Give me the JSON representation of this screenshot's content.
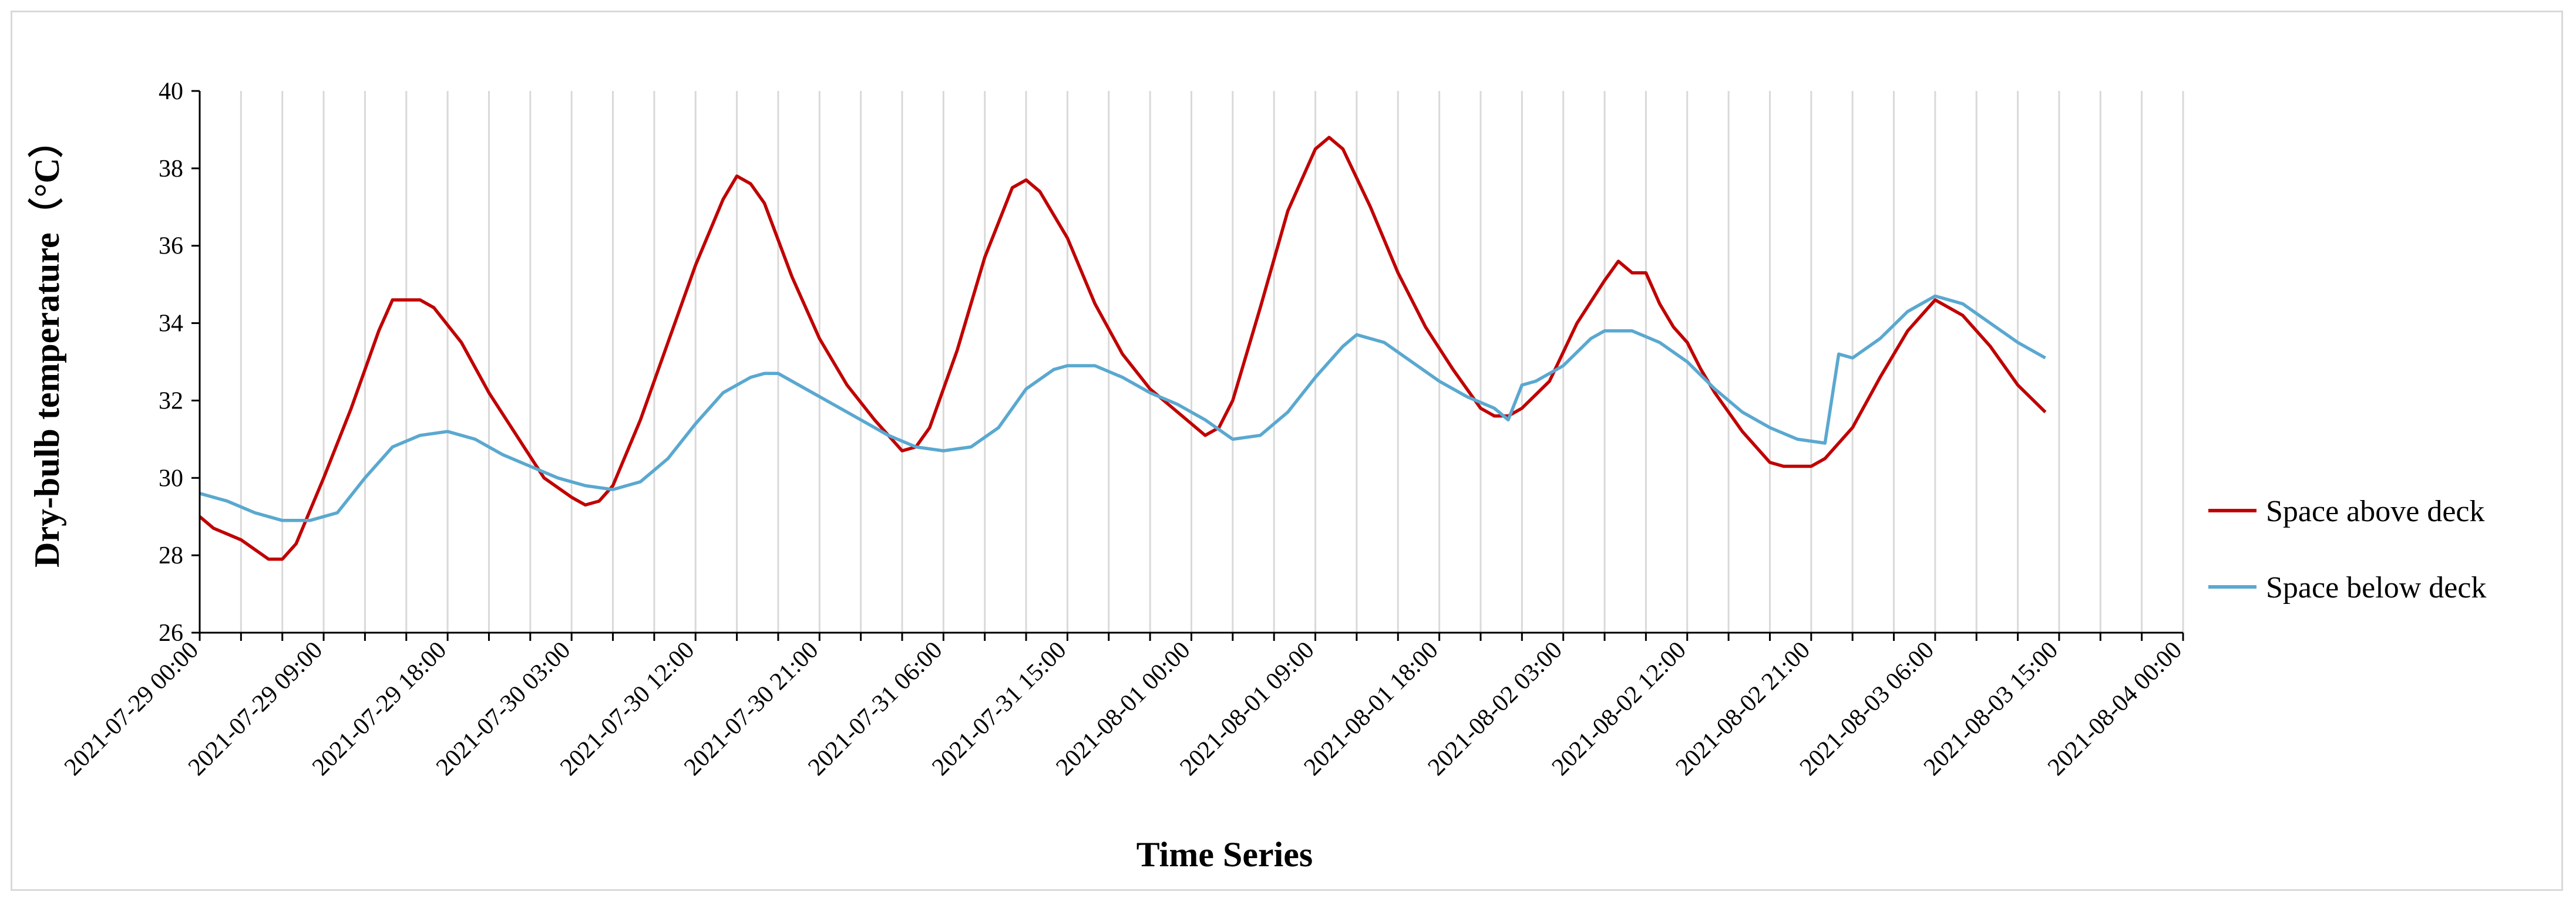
{
  "chart_data": {
    "type": "line",
    "title": "",
    "xlabel": "Time Series",
    "ylabel": "Dry-bulb temperature（°C）",
    "ylim": [
      26,
      40
    ],
    "yticks": [
      26,
      28,
      30,
      32,
      34,
      36,
      38,
      40
    ],
    "x_range_hours": [
      0,
      144
    ],
    "x_tick_interval_hours": 9,
    "x_start_label": "2021-07-29 00:00",
    "x_tick_labels": [
      "2021-07-29 00:00",
      "2021-07-29 09:00",
      "2021-07-29 18:00",
      "2021-07-30 03:00",
      "2021-07-30 12:00",
      "2021-07-30 21:00",
      "2021-07-31 06:00",
      "2021-07-31 15:00",
      "2021-08-01 00:00",
      "2021-08-01 09:00",
      "2021-08-01 18:00",
      "2021-08-02 03:00",
      "2021-08-02 12:00",
      "2021-08-02 21:00",
      "2021-08-03 06:00",
      "2021-08-03 15:00",
      "2021-08-04 00:00"
    ],
    "grid": "vertical",
    "legend_position": "right",
    "series": [
      {
        "name": "Space above deck",
        "color": "#c00000",
        "points": [
          [
            "2021-07-29 00:00",
            29.0
          ],
          [
            "2021-07-29 01:00",
            28.7
          ],
          [
            "2021-07-29 03:00",
            28.4
          ],
          [
            "2021-07-29 05:00",
            27.9
          ],
          [
            "2021-07-29 06:00",
            27.9
          ],
          [
            "2021-07-29 07:00",
            28.3
          ],
          [
            "2021-07-29 09:00",
            30.0
          ],
          [
            "2021-07-29 11:00",
            31.8
          ],
          [
            "2021-07-29 13:00",
            33.8
          ],
          [
            "2021-07-29 14:00",
            34.6
          ],
          [
            "2021-07-29 16:00",
            34.6
          ],
          [
            "2021-07-29 17:00",
            34.4
          ],
          [
            "2021-07-29 19:00",
            33.5
          ],
          [
            "2021-07-29 21:00",
            32.2
          ],
          [
            "2021-07-29 23:00",
            31.1
          ],
          [
            "2021-07-30 01:00",
            30.0
          ],
          [
            "2021-07-30 03:00",
            29.5
          ],
          [
            "2021-07-30 04:00",
            29.3
          ],
          [
            "2021-07-30 05:00",
            29.4
          ],
          [
            "2021-07-30 06:00",
            29.8
          ],
          [
            "2021-07-30 08:00",
            31.5
          ],
          [
            "2021-07-30 10:00",
            33.5
          ],
          [
            "2021-07-30 12:00",
            35.5
          ],
          [
            "2021-07-30 14:00",
            37.2
          ],
          [
            "2021-07-30 15:00",
            37.8
          ],
          [
            "2021-07-30 16:00",
            37.6
          ],
          [
            "2021-07-30 17:00",
            37.1
          ],
          [
            "2021-07-30 19:00",
            35.2
          ],
          [
            "2021-07-30 21:00",
            33.6
          ],
          [
            "2021-07-30 23:00",
            32.4
          ],
          [
            "2021-07-31 01:00",
            31.5
          ],
          [
            "2021-07-31 03:00",
            30.7
          ],
          [
            "2021-07-31 04:00",
            30.8
          ],
          [
            "2021-07-31 05:00",
            31.3
          ],
          [
            "2021-07-31 07:00",
            33.3
          ],
          [
            "2021-07-31 09:00",
            35.7
          ],
          [
            "2021-07-31 11:00",
            37.5
          ],
          [
            "2021-07-31 12:00",
            37.7
          ],
          [
            "2021-07-31 13:00",
            37.4
          ],
          [
            "2021-07-31 15:00",
            36.2
          ],
          [
            "2021-07-31 17:00",
            34.5
          ],
          [
            "2021-07-31 19:00",
            33.2
          ],
          [
            "2021-07-31 21:00",
            32.3
          ],
          [
            "2021-07-31 23:00",
            31.7
          ],
          [
            "2021-08-01 01:00",
            31.1
          ],
          [
            "2021-08-01 02:00",
            31.3
          ],
          [
            "2021-08-01 03:00",
            32.0
          ],
          [
            "2021-08-01 05:00",
            34.4
          ],
          [
            "2021-08-01 07:00",
            36.9
          ],
          [
            "2021-08-01 09:00",
            38.5
          ],
          [
            "2021-08-01 10:00",
            38.8
          ],
          [
            "2021-08-01 11:00",
            38.5
          ],
          [
            "2021-08-01 13:00",
            37.0
          ],
          [
            "2021-08-01 15:00",
            35.3
          ],
          [
            "2021-08-01 17:00",
            33.9
          ],
          [
            "2021-08-01 19:00",
            32.8
          ],
          [
            "2021-08-01 21:00",
            31.8
          ],
          [
            "2021-08-01 22:00",
            31.6
          ],
          [
            "2021-08-01 23:00",
            31.6
          ],
          [
            "2021-08-02 00:00",
            31.8
          ],
          [
            "2021-08-02 02:00",
            32.5
          ],
          [
            "2021-08-02 04:00",
            34.0
          ],
          [
            "2021-08-02 06:00",
            35.1
          ],
          [
            "2021-08-02 07:00",
            35.6
          ],
          [
            "2021-08-02 08:00",
            35.3
          ],
          [
            "2021-08-02 09:00",
            35.3
          ],
          [
            "2021-08-02 10:00",
            34.5
          ],
          [
            "2021-08-02 11:00",
            33.9
          ],
          [
            "2021-08-02 12:00",
            33.5
          ],
          [
            "2021-08-02 13:00",
            32.8
          ],
          [
            "2021-08-02 14:00",
            32.2
          ],
          [
            "2021-08-02 16:00",
            31.2
          ],
          [
            "2021-08-02 18:00",
            30.4
          ],
          [
            "2021-08-02 19:00",
            30.3
          ],
          [
            "2021-08-02 21:00",
            30.3
          ],
          [
            "2021-08-02 22:00",
            30.5
          ],
          [
            "2021-08-03 00:00",
            31.3
          ],
          [
            "2021-08-03 02:00",
            32.6
          ],
          [
            "2021-08-03 04:00",
            33.8
          ],
          [
            "2021-08-03 06:00",
            34.6
          ],
          [
            "2021-08-03 08:00",
            34.2
          ],
          [
            "2021-08-03 10:00",
            33.4
          ],
          [
            "2021-08-03 12:00",
            32.4
          ],
          [
            "2021-08-03 14:00",
            31.7
          ]
        ]
      },
      {
        "name": "Space below deck",
        "color": "#5aa8d0",
        "points": [
          [
            "2021-07-29 00:00",
            29.6
          ],
          [
            "2021-07-29 02:00",
            29.4
          ],
          [
            "2021-07-29 04:00",
            29.1
          ],
          [
            "2021-07-29 06:00",
            28.9
          ],
          [
            "2021-07-29 08:00",
            28.9
          ],
          [
            "2021-07-29 10:00",
            29.1
          ],
          [
            "2021-07-29 12:00",
            30.0
          ],
          [
            "2021-07-29 14:00",
            30.8
          ],
          [
            "2021-07-29 16:00",
            31.1
          ],
          [
            "2021-07-29 18:00",
            31.2
          ],
          [
            "2021-07-29 20:00",
            31.0
          ],
          [
            "2021-07-29 22:00",
            30.6
          ],
          [
            "2021-07-30 00:00",
            30.3
          ],
          [
            "2021-07-30 02:00",
            30.0
          ],
          [
            "2021-07-30 04:00",
            29.8
          ],
          [
            "2021-07-30 06:00",
            29.7
          ],
          [
            "2021-07-30 08:00",
            29.9
          ],
          [
            "2021-07-30 10:00",
            30.5
          ],
          [
            "2021-07-30 12:00",
            31.4
          ],
          [
            "2021-07-30 14:00",
            32.2
          ],
          [
            "2021-07-30 16:00",
            32.6
          ],
          [
            "2021-07-30 17:00",
            32.7
          ],
          [
            "2021-07-30 18:00",
            32.7
          ],
          [
            "2021-07-30 20:00",
            32.3
          ],
          [
            "2021-07-30 22:00",
            31.9
          ],
          [
            "2021-07-31 00:00",
            31.5
          ],
          [
            "2021-07-31 02:00",
            31.1
          ],
          [
            "2021-07-31 04:00",
            30.8
          ],
          [
            "2021-07-31 06:00",
            30.7
          ],
          [
            "2021-07-31 08:00",
            30.8
          ],
          [
            "2021-07-31 10:00",
            31.3
          ],
          [
            "2021-07-31 12:00",
            32.3
          ],
          [
            "2021-07-31 14:00",
            32.8
          ],
          [
            "2021-07-31 15:00",
            32.9
          ],
          [
            "2021-07-31 17:00",
            32.9
          ],
          [
            "2021-07-31 19:00",
            32.6
          ],
          [
            "2021-07-31 21:00",
            32.2
          ],
          [
            "2021-07-31 23:00",
            31.9
          ],
          [
            "2021-08-01 01:00",
            31.5
          ],
          [
            "2021-08-01 03:00",
            31.0
          ],
          [
            "2021-08-01 05:00",
            31.1
          ],
          [
            "2021-08-01 07:00",
            31.7
          ],
          [
            "2021-08-01 09:00",
            32.6
          ],
          [
            "2021-08-01 11:00",
            33.4
          ],
          [
            "2021-08-01 12:00",
            33.7
          ],
          [
            "2021-08-01 14:00",
            33.5
          ],
          [
            "2021-08-01 16:00",
            33.0
          ],
          [
            "2021-08-01 18:00",
            32.5
          ],
          [
            "2021-08-01 20:00",
            32.1
          ],
          [
            "2021-08-01 22:00",
            31.8
          ],
          [
            "2021-08-01 23:00",
            31.5
          ],
          [
            "2021-08-02 00:00",
            32.4
          ],
          [
            "2021-08-02 01:00",
            32.5
          ],
          [
            "2021-08-02 03:00",
            32.9
          ],
          [
            "2021-08-02 05:00",
            33.6
          ],
          [
            "2021-08-02 06:00",
            33.8
          ],
          [
            "2021-08-02 08:00",
            33.8
          ],
          [
            "2021-08-02 10:00",
            33.5
          ],
          [
            "2021-08-02 12:00",
            33.0
          ],
          [
            "2021-08-02 14:00",
            32.3
          ],
          [
            "2021-08-02 16:00",
            31.7
          ],
          [
            "2021-08-02 18:00",
            31.3
          ],
          [
            "2021-08-02 20:00",
            31.0
          ],
          [
            "2021-08-02 22:00",
            30.9
          ],
          [
            "2021-08-02 23:00",
            33.2
          ],
          [
            "2021-08-03 00:00",
            33.1
          ],
          [
            "2021-08-03 02:00",
            33.6
          ],
          [
            "2021-08-03 04:00",
            34.3
          ],
          [
            "2021-08-03 06:00",
            34.7
          ],
          [
            "2021-08-03 08:00",
            34.5
          ],
          [
            "2021-08-03 10:00",
            34.0
          ],
          [
            "2021-08-03 12:00",
            33.5
          ],
          [
            "2021-08-03 14:00",
            33.1
          ]
        ]
      }
    ]
  }
}
